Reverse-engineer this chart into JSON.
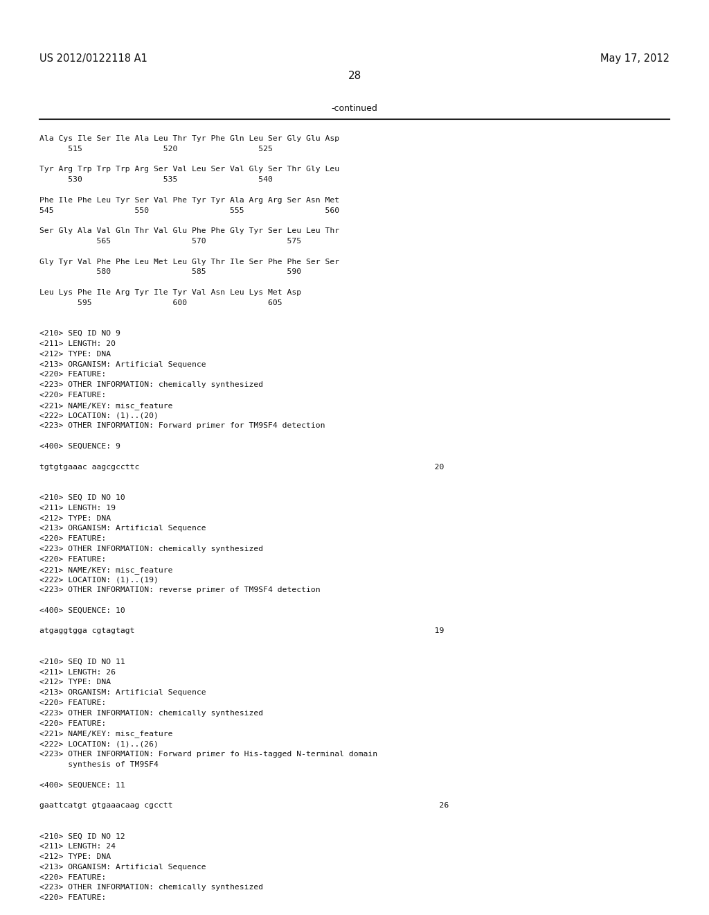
{
  "background_color": "#ffffff",
  "header_left": "US 2012/0122118 A1",
  "header_right": "May 17, 2012",
  "page_number": "28",
  "continued_label": "-continued",
  "content_lines": [
    "Ala Cys Ile Ser Ile Ala Leu Thr Tyr Phe Gln Leu Ser Gly Glu Asp",
    "      515                 520                 525",
    "",
    "Tyr Arg Trp Trp Trp Arg Ser Val Leu Ser Val Gly Ser Thr Gly Leu",
    "      530                 535                 540",
    "",
    "Phe Ile Phe Leu Tyr Ser Val Phe Tyr Tyr Ala Arg Arg Ser Asn Met",
    "545                 550                 555                 560",
    "",
    "Ser Gly Ala Val Gln Thr Val Glu Phe Phe Gly Tyr Ser Leu Leu Thr",
    "            565                 570                 575",
    "",
    "Gly Tyr Val Phe Phe Leu Met Leu Gly Thr Ile Ser Phe Phe Ser Ser",
    "            580                 585                 590",
    "",
    "Leu Lys Phe Ile Arg Tyr Ile Tyr Val Asn Leu Lys Met Asp",
    "        595                 600                 605",
    "",
    "",
    "<210> SEQ ID NO 9",
    "<211> LENGTH: 20",
    "<212> TYPE: DNA",
    "<213> ORGANISM: Artificial Sequence",
    "<220> FEATURE:",
    "<223> OTHER INFORMATION: chemically synthesized",
    "<220> FEATURE:",
    "<221> NAME/KEY: misc_feature",
    "<222> LOCATION: (1)..(20)",
    "<223> OTHER INFORMATION: Forward primer for TM9SF4 detection",
    "",
    "<400> SEQUENCE: 9",
    "",
    "tgtgtgaaac aagcgccttc                                                              20",
    "",
    "",
    "<210> SEQ ID NO 10",
    "<211> LENGTH: 19",
    "<212> TYPE: DNA",
    "<213> ORGANISM: Artificial Sequence",
    "<220> FEATURE:",
    "<223> OTHER INFORMATION: chemically synthesized",
    "<220> FEATURE:",
    "<221> NAME/KEY: misc_feature",
    "<222> LOCATION: (1)..(19)",
    "<223> OTHER INFORMATION: reverse primer of TM9SF4 detection",
    "",
    "<400> SEQUENCE: 10",
    "",
    "atgaggtgga cgtagtagt                                                               19",
    "",
    "",
    "<210> SEQ ID NO 11",
    "<211> LENGTH: 26",
    "<212> TYPE: DNA",
    "<213> ORGANISM: Artificial Sequence",
    "<220> FEATURE:",
    "<223> OTHER INFORMATION: chemically synthesized",
    "<220> FEATURE:",
    "<221> NAME/KEY: misc_feature",
    "<222> LOCATION: (1)..(26)",
    "<223> OTHER INFORMATION: Forward primer fo His-tagged N-terminal domain",
    "      synthesis of TM9SF4",
    "",
    "<400> SEQUENCE: 11",
    "",
    "gaattcatgt gtgaaacaag cgcctt                                                        26",
    "",
    "",
    "<210> SEQ ID NO 12",
    "<211> LENGTH: 24",
    "<212> TYPE: DNA",
    "<213> ORGANISM: Artificial Sequence",
    "<220> FEATURE:",
    "<223> OTHER INFORMATION: chemically synthesized",
    "<220> FEATURE:"
  ]
}
